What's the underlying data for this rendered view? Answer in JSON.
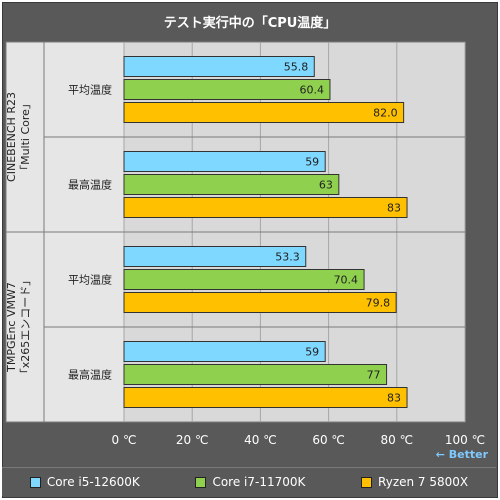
{
  "chart_data": {
    "type": "bar",
    "orientation": "horizontal",
    "title": "テスト実行中の「CPU温度」",
    "note": "← Better",
    "xlim": [
      0,
      100
    ],
    "x_ticks": [
      "0 ℃",
      "20 ℃",
      "40 ℃",
      "60 ℃",
      "80 ℃",
      "100 ℃"
    ],
    "groups": [
      {
        "label": "CINEBENCH R23\n「Multi Core」",
        "subgroups": [
          {
            "label": "平均温度",
            "values": [
              55.8,
              60.4,
              82.0
            ],
            "value_labels": [
              "55.8",
              "60.4",
              "82.0"
            ]
          },
          {
            "label": "最高温度",
            "values": [
              59,
              63,
              83
            ],
            "value_labels": [
              "59",
              "63",
              "83"
            ]
          }
        ]
      },
      {
        "label": "TMPGEnc VMW7\n「x265エンコード」",
        "subgroups": [
          {
            "label": "平均温度",
            "values": [
              53.3,
              70.4,
              79.8
            ],
            "value_labels": [
              "53.3",
              "70.4",
              "79.8"
            ]
          },
          {
            "label": "最高温度",
            "values": [
              59,
              77,
              83
            ],
            "value_labels": [
              "59",
              "77",
              "83"
            ]
          }
        ]
      }
    ],
    "series": [
      {
        "name": "Core i5-12600K",
        "color": "#7fd8ff"
      },
      {
        "name": "Core i7-11700K",
        "color": "#8fd14f"
      },
      {
        "name": "Ryzen 7 5800X",
        "color": "#ffc000"
      }
    ],
    "grid": true,
    "legend_position": "bottom"
  }
}
